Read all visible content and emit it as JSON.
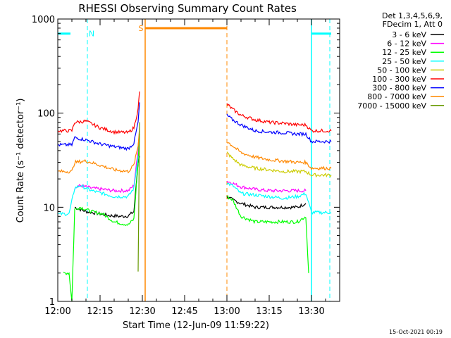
{
  "chart_data": {
    "type": "line",
    "title": "RHESSI Observing Summary Count Rates",
    "xlabel": "Start Time (12-Jun-09 11:59:22)",
    "ylabel": "Count Rate (s⁻¹ detector⁻¹)",
    "yscale": "log",
    "ylim": [
      1,
      1000
    ],
    "xlim_minutes": [
      0,
      100
    ],
    "x_ticks": [
      {
        "t": 0,
        "label": "12:00"
      },
      {
        "t": 15,
        "label": "12:15"
      },
      {
        "t": 30,
        "label": "12:30"
      },
      {
        "t": 45,
        "label": "12:45"
      },
      {
        "t": 60,
        "label": "13:00"
      },
      {
        "t": 75,
        "label": "13:15"
      },
      {
        "t": 90,
        "label": "13:30"
      }
    ],
    "y_ticks": [
      {
        "v": 1,
        "label": "1"
      },
      {
        "v": 10,
        "label": "10"
      },
      {
        "v": 100,
        "label": "100"
      },
      {
        "v": 1000,
        "label": "1000"
      }
    ],
    "legend_header": [
      "Det 1,3,4,5,6,9,",
      "FDecim 1, Att 0"
    ],
    "series": [
      {
        "name": "3 - 6 keV",
        "color": "#000000",
        "segments": [
          [
            [
              6,
              10
            ],
            [
              10,
              9
            ],
            [
              14,
              8.6
            ],
            [
              18,
              8.2
            ],
            [
              22,
              8.0
            ],
            [
              25,
              8.1
            ],
            [
              27,
              9
            ],
            [
              28.5,
              30
            ],
            [
              29,
              35
            ]
          ],
          [
            [
              60,
              13
            ],
            [
              62,
              12
            ],
            [
              65,
              11
            ],
            [
              70,
              10
            ],
            [
              75,
              10
            ],
            [
              80,
              10
            ],
            [
              85,
              10
            ],
            [
              88,
              11
            ]
          ]
        ]
      },
      {
        "name": "6 - 12 keV",
        "color": "#ff00ff",
        "segments": [
          [
            [
              6,
              16
            ],
            [
              8,
              17
            ],
            [
              12,
              16
            ],
            [
              16,
              15.5
            ],
            [
              20,
              15
            ],
            [
              25,
              15
            ],
            [
              27,
              17
            ],
            [
              28.5,
              40
            ],
            [
              29,
              60
            ]
          ],
          [
            [
              60,
              19
            ],
            [
              62,
              18
            ],
            [
              65,
              16.5
            ],
            [
              70,
              15.5
            ],
            [
              75,
              15
            ],
            [
              80,
              15
            ],
            [
              85,
              15
            ],
            [
              88,
              15
            ]
          ]
        ]
      },
      {
        "name": "12 - 25 keV",
        "color": "#00ff00",
        "segments": [
          [
            [
              2,
              2
            ],
            [
              4,
              2
            ],
            [
              5,
              1
            ],
            [
              6,
              9.5
            ],
            [
              8,
              10
            ],
            [
              12,
              9
            ],
            [
              16,
              8.5
            ],
            [
              20,
              7
            ],
            [
              25,
              6.5
            ],
            [
              27,
              7.5
            ],
            [
              28.5,
              30
            ],
            [
              29,
              60
            ]
          ],
          [
            [
              60,
              13
            ],
            [
              62,
              12
            ],
            [
              65,
              8
            ],
            [
              70,
              7
            ],
            [
              75,
              7
            ],
            [
              80,
              7
            ],
            [
              85,
              7
            ],
            [
              88,
              8
            ],
            [
              89,
              2
            ]
          ]
        ]
      },
      {
        "name": "25 - 50 keV",
        "color": "#00ffff",
        "segments": [
          [
            [
              0,
              8.5
            ],
            [
              4,
              8.5
            ],
            [
              6,
              16
            ],
            [
              8,
              17
            ],
            [
              12,
              15
            ],
            [
              16,
              14
            ],
            [
              20,
              13
            ],
            [
              25,
              13
            ],
            [
              27,
              16
            ],
            [
              28.5,
              35
            ]
          ],
          [
            [
              60,
              18
            ],
            [
              62,
              17
            ],
            [
              65,
              14
            ],
            [
              70,
              13.5
            ],
            [
              75,
              13
            ],
            [
              80,
              12.5
            ],
            [
              85,
              13
            ],
            [
              88,
              14
            ],
            [
              90,
              8.8
            ],
            [
              97,
              8.8
            ]
          ]
        ]
      },
      {
        "name": "50 - 100 keV",
        "color": "#cccc00",
        "segments": [
          [
            [
              28.5,
              45
            ],
            [
              29,
              60
            ]
          ],
          [
            [
              60,
              38
            ],
            [
              62,
              33
            ],
            [
              65,
              28
            ],
            [
              70,
              26
            ],
            [
              75,
              25
            ],
            [
              80,
              24
            ],
            [
              85,
              24
            ],
            [
              88,
              24
            ],
            [
              90,
              22
            ],
            [
              97,
              22
            ]
          ]
        ]
      },
      {
        "name": "100 - 300 keV",
        "color": "#ff0000",
        "segments": [
          [
            [
              0,
              65
            ],
            [
              5,
              65
            ],
            [
              6,
              80
            ],
            [
              10,
              82
            ],
            [
              15,
              70
            ],
            [
              20,
              63
            ],
            [
              25,
              62
            ],
            [
              27,
              70
            ],
            [
              28.5,
              110
            ],
            [
              29,
              170
            ]
          ],
          [
            [
              60,
              125
            ],
            [
              62,
              110
            ],
            [
              65,
              95
            ],
            [
              70,
              85
            ],
            [
              75,
              80
            ],
            [
              80,
              78
            ],
            [
              85,
              75
            ],
            [
              88,
              75
            ],
            [
              90,
              65
            ],
            [
              97,
              65
            ]
          ]
        ]
      },
      {
        "name": "300 - 800 keV",
        "color": "#0000ff",
        "segments": [
          [
            [
              0,
              46
            ],
            [
              5,
              46
            ],
            [
              6,
              55
            ],
            [
              10,
              52
            ],
            [
              15,
              47
            ],
            [
              20,
              44
            ],
            [
              25,
              42
            ],
            [
              27,
              48
            ],
            [
              28.5,
              80
            ],
            [
              29,
              130
            ]
          ],
          [
            [
              60,
              95
            ],
            [
              62,
              85
            ],
            [
              65,
              75
            ],
            [
              70,
              65
            ],
            [
              75,
              63
            ],
            [
              80,
              62
            ],
            [
              85,
              60
            ],
            [
              88,
              60
            ],
            [
              90,
              50
            ],
            [
              97,
              50
            ]
          ]
        ]
      },
      {
        "name": "800 - 7000 keV",
        "color": "#ff8800",
        "segments": [
          [
            [
              0,
              24
            ],
            [
              5,
              24
            ],
            [
              6,
              30
            ],
            [
              10,
              31
            ],
            [
              15,
              28
            ],
            [
              20,
              25
            ],
            [
              25,
              24
            ],
            [
              27,
              28
            ],
            [
              28.5,
              45
            ],
            [
              29,
              70
            ]
          ],
          [
            [
              60,
              50
            ],
            [
              62,
              45
            ],
            [
              65,
              38
            ],
            [
              70,
              34
            ],
            [
              75,
              32
            ],
            [
              80,
              31
            ],
            [
              85,
              30
            ],
            [
              88,
              30
            ],
            [
              90,
              26
            ],
            [
              97,
              26
            ]
          ]
        ]
      },
      {
        "name": "7000 - 15000 keV",
        "color": "#669900",
        "segments": [
          [
            [
              28.5,
              2
            ],
            [
              29,
              80
            ]
          ]
        ]
      }
    ],
    "annotations": {
      "night_bars_color": "#00ffff",
      "night_bars": [
        {
          "start": 0,
          "end": 4.5,
          "level": 700
        },
        {
          "start": 90,
          "end": 97,
          "level": 700
        }
      ],
      "n_label": {
        "text": "N",
        "t": 12,
        "level": 700
      },
      "saa_color": "#ff8800",
      "saa_bar": {
        "start": 31,
        "end": 60,
        "level": 800
      },
      "s_label": {
        "text": "S",
        "t": 29.5,
        "level": 800
      },
      "vlines_dashed": [
        {
          "t": 10.5,
          "color": "#00ffff"
        },
        {
          "t": 60,
          "color": "#ff8800"
        },
        {
          "t": 96.5,
          "color": "#00ffff"
        }
      ],
      "vlines_solid": [
        {
          "t": 31,
          "color": "#ff8800"
        },
        {
          "t": 90,
          "color": "#00ffff"
        }
      ]
    },
    "footer": "15-Oct-2021 00:19"
  }
}
